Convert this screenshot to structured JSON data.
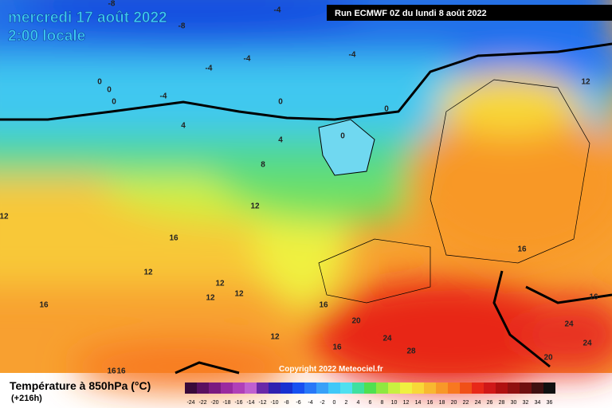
{
  "header": {
    "title": "mercredi 17 août 2022",
    "subtitle": "2:00 locale",
    "run": "Run ECMWF 0Z du lundi 8 août 2022"
  },
  "copyright": "Copyright 2022 Meteociel.fr",
  "footer": {
    "label": "Température à 850hPa (°C)",
    "lead": "(+216h)"
  },
  "legend": {
    "ticks": [
      -24,
      -22,
      -20,
      -18,
      -16,
      -14,
      -12,
      -10,
      -8,
      -6,
      -4,
      -2,
      0,
      2,
      4,
      6,
      8,
      10,
      12,
      14,
      16,
      18,
      20,
      22,
      24,
      26,
      28,
      30,
      32,
      34,
      36
    ],
    "colors": [
      "#3a0a3a",
      "#5a1060",
      "#7a1a80",
      "#9a2aa0",
      "#b040b8",
      "#c060d0",
      "#6a28a8",
      "#3020b0",
      "#1830d0",
      "#1850f0",
      "#2878f8",
      "#38a0f8",
      "#40c8f8",
      "#50e0f0",
      "#40e0a0",
      "#50e050",
      "#90e840",
      "#c8f040",
      "#f0f040",
      "#f8d838",
      "#f8b830",
      "#f89828",
      "#f87820",
      "#f05018",
      "#e82818",
      "#d01818",
      "#b01010",
      "#901010",
      "#701010",
      "#401010",
      "#101010"
    ]
  },
  "map": {
    "contour_labels": [
      -8,
      -4,
      -8,
      -4,
      -4,
      -4,
      0,
      0,
      0,
      -4,
      0,
      0,
      0,
      4,
      4,
      8,
      12,
      12,
      12,
      16,
      12,
      16,
      12,
      12,
      12,
      16,
      16,
      16,
      20,
      24,
      24,
      12,
      16,
      28,
      24,
      20,
      16,
      16
    ]
  }
}
